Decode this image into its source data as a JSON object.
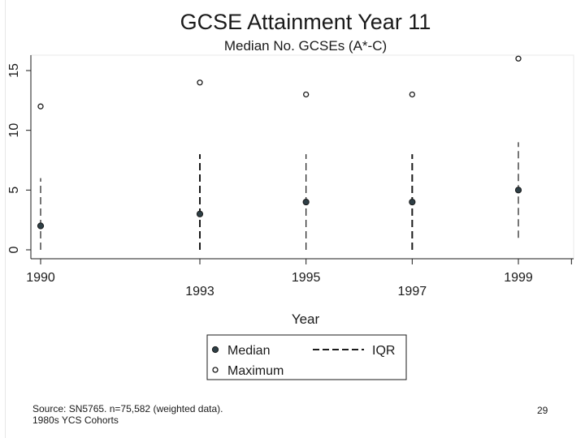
{
  "chart_data": {
    "type": "scatter",
    "title": "GCSE Attainment Year 11",
    "subtitle": "Median No. GCSEs (A*-C)",
    "xlabel": "Year",
    "ylabel": "",
    "x_ticks": [
      1990,
      1993,
      1995,
      1997,
      1999
    ],
    "x_tick_labels": [
      "1990",
      "1993",
      "1995",
      "1997",
      "1999"
    ],
    "y_ticks": [
      0,
      5,
      10,
      15
    ],
    "y_tick_labels": [
      "0",
      "5",
      "10",
      "15"
    ],
    "xlim": [
      1990,
      2000
    ],
    "ylim": [
      0,
      16
    ],
    "grid": false,
    "legend_position": "bottom",
    "series": [
      {
        "name": "Median",
        "marker": "filled-circle",
        "x": [
          1990,
          1993,
          1995,
          1997,
          1999
        ],
        "values": [
          2,
          3,
          4,
          4,
          5
        ]
      },
      {
        "name": "Maximum",
        "marker": "hollow-circle",
        "x": [
          1990,
          1993,
          1995,
          1997,
          1999
        ],
        "values": [
          12,
          14,
          13,
          13,
          16
        ]
      },
      {
        "name": "IQR",
        "marker": "dashed-range",
        "x": [
          1990,
          1993,
          1995,
          1997,
          1999
        ],
        "low": [
          0,
          0,
          0,
          0,
          1
        ],
        "high": [
          6,
          8,
          8,
          8,
          9
        ]
      }
    ],
    "colors": {
      "median": "#2e3f46",
      "maximum": "#1a1a1a",
      "iqr": "#1a1a1a"
    }
  },
  "footer": {
    "source": "Source: SN5765. n=75,582 (weighted data).",
    "cohorts": "1980s YCS Cohorts"
  },
  "slide_number": "29"
}
